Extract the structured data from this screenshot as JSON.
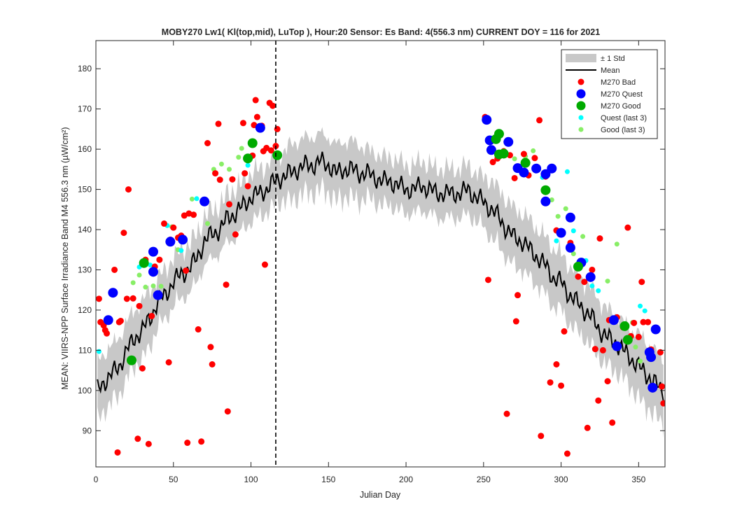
{
  "chart_data": {
    "type": "scatter",
    "title": "MOBY270   Lw1( Kl(top,mid), LuTop ),   Hour:20 Sensor: Es Band: 4(556.3 nm)   CURRENT DOY = 116 for 2021",
    "xlabel": "Julian Day",
    "ylabel": "MEAN: VIIRS-NPP Surface Irradiance Band M4 556.3 nm (µW/cm²)",
    "xlim": [
      0,
      367
    ],
    "ylim": [
      81,
      187
    ],
    "xticks": [
      0,
      50,
      100,
      150,
      200,
      250,
      300,
      350
    ],
    "yticks": [
      90,
      100,
      110,
      120,
      130,
      140,
      150,
      160,
      170,
      180
    ],
    "current_doy": 116,
    "legend_position": "top-right",
    "colors": {
      "std_band": "#c8c8c8",
      "mean": "#000000",
      "bad": "#ff0000",
      "quest": "#0000ff",
      "good": "#00aa00",
      "quest_last3": "#00ffff",
      "good_last3": "#88ee66"
    },
    "legend": [
      {
        "label": "± 1 Std",
        "key": "std"
      },
      {
        "label": "Mean",
        "key": "mean"
      },
      {
        "label": "M270 Bad",
        "key": "bad"
      },
      {
        "label": "M270 Quest",
        "key": "quest"
      },
      {
        "label": "M270 Good",
        "key": "good"
      },
      {
        "label": "Quest (last 3)",
        "key": "quest_last3"
      },
      {
        "label": "Good (last 3)",
        "key": "good_last3"
      }
    ],
    "mean_std": {
      "days": [
        1,
        5,
        10,
        15,
        20,
        25,
        30,
        35,
        40,
        45,
        50,
        55,
        60,
        65,
        70,
        75,
        80,
        85,
        90,
        95,
        100,
        105,
        110,
        115,
        120,
        125,
        130,
        135,
        140,
        145,
        150,
        155,
        160,
        165,
        170,
        175,
        180,
        185,
        190,
        195,
        200,
        205,
        210,
        215,
        220,
        225,
        230,
        235,
        240,
        245,
        250,
        255,
        260,
        265,
        270,
        275,
        280,
        285,
        290,
        295,
        300,
        305,
        310,
        315,
        320,
        325,
        330,
        335,
        340,
        345,
        350,
        355,
        360,
        365
      ],
      "mean": [
        100,
        102,
        104,
        106,
        110,
        113,
        115,
        118,
        122,
        124,
        127,
        129,
        130,
        133,
        137,
        139,
        140,
        143,
        144,
        146,
        148,
        149,
        150,
        152,
        153,
        154,
        155,
        156,
        156,
        157,
        156,
        154,
        155,
        155,
        154,
        154,
        153,
        152,
        152,
        151,
        150,
        150,
        151,
        150,
        149,
        149,
        149,
        149,
        150,
        148,
        147,
        145,
        143,
        140,
        138,
        137,
        135,
        133,
        131,
        128,
        127,
        124,
        122,
        120,
        118,
        115,
        113,
        112,
        110,
        108,
        106,
        104,
        102,
        100
      ],
      "std": [
        6,
        6,
        6,
        6,
        6,
        6,
        6,
        6,
        5,
        5,
        5,
        5,
        5,
        5,
        5,
        5,
        5,
        5,
        5,
        5,
        5,
        5,
        5,
        5,
        5,
        6,
        6,
        6,
        6,
        6,
        6,
        6,
        6,
        6,
        6,
        5,
        5,
        5,
        5,
        5,
        5,
        5,
        5,
        5,
        5,
        5,
        5,
        5,
        5,
        5,
        5,
        6,
        6,
        6,
        6,
        6,
        6,
        6,
        6,
        6,
        6,
        6,
        6,
        6,
        6,
        6,
        6,
        6,
        6,
        6,
        7,
        7,
        7,
        7
      ]
    },
    "bad": [
      {
        "x": 2,
        "y": 122.8
      },
      {
        "x": 3,
        "y": 117
      },
      {
        "x": 5,
        "y": 116.2
      },
      {
        "x": 6,
        "y": 115
      },
      {
        "x": 7,
        "y": 114.2
      },
      {
        "x": 12,
        "y": 130
      },
      {
        "x": 14,
        "y": 84.6
      },
      {
        "x": 15,
        "y": 117
      },
      {
        "x": 16,
        "y": 117.3
      },
      {
        "x": 18,
        "y": 139.2
      },
      {
        "x": 21,
        "y": 150
      },
      {
        "x": 20,
        "y": 122.8
      },
      {
        "x": 24,
        "y": 122.9
      },
      {
        "x": 27,
        "y": 88
      },
      {
        "x": 28,
        "y": 121
      },
      {
        "x": 30,
        "y": 105.5
      },
      {
        "x": 32,
        "y": 132.5
      },
      {
        "x": 34,
        "y": 86.7
      },
      {
        "x": 36,
        "y": 118.5
      },
      {
        "x": 38,
        "y": 130.8
      },
      {
        "x": 41,
        "y": 132.5
      },
      {
        "x": 44,
        "y": 141.5
      },
      {
        "x": 47,
        "y": 107
      },
      {
        "x": 48,
        "y": 137.5
      },
      {
        "x": 50,
        "y": 140.5
      },
      {
        "x": 53,
        "y": 138
      },
      {
        "x": 55,
        "y": 138.5
      },
      {
        "x": 57,
        "y": 143.5
      },
      {
        "x": 58,
        "y": 129.8
      },
      {
        "x": 59,
        "y": 87
      },
      {
        "x": 60,
        "y": 144
      },
      {
        "x": 63,
        "y": 143.7
      },
      {
        "x": 66,
        "y": 115.2
      },
      {
        "x": 68,
        "y": 87.3
      },
      {
        "x": 72,
        "y": 161.5
      },
      {
        "x": 74,
        "y": 110.8
      },
      {
        "x": 75,
        "y": 106.5
      },
      {
        "x": 77,
        "y": 154
      },
      {
        "x": 79,
        "y": 166.3
      },
      {
        "x": 80,
        "y": 152.4
      },
      {
        "x": 84,
        "y": 126.3
      },
      {
        "x": 85,
        "y": 94.8
      },
      {
        "x": 86,
        "y": 146.3
      },
      {
        "x": 88,
        "y": 152.5
      },
      {
        "x": 90,
        "y": 138.8
      },
      {
        "x": 95,
        "y": 166.5
      },
      {
        "x": 96,
        "y": 154
      },
      {
        "x": 98,
        "y": 150.8
      },
      {
        "x": 101,
        "y": 158.4
      },
      {
        "x": 102,
        "y": 166
      },
      {
        "x": 103,
        "y": 172.2
      },
      {
        "x": 104,
        "y": 168
      },
      {
        "x": 107,
        "y": 165.8
      },
      {
        "x": 108,
        "y": 159.5
      },
      {
        "x": 109,
        "y": 131.3
      },
      {
        "x": 110,
        "y": 160.3
      },
      {
        "x": 112,
        "y": 171.5
      },
      {
        "x": 113,
        "y": 159.7
      },
      {
        "x": 114,
        "y": 170.8
      },
      {
        "x": 116,
        "y": 160.8
      },
      {
        "x": 117,
        "y": 165
      },
      {
        "x": 251,
        "y": 168
      },
      {
        "x": 253,
        "y": 127.5
      },
      {
        "x": 256,
        "y": 156.8
      },
      {
        "x": 259,
        "y": 157.7
      },
      {
        "x": 263,
        "y": 159.5
      },
      {
        "x": 265,
        "y": 94.2
      },
      {
        "x": 267,
        "y": 158.5
      },
      {
        "x": 270,
        "y": 152.8
      },
      {
        "x": 271,
        "y": 117.2
      },
      {
        "x": 272,
        "y": 123.7
      },
      {
        "x": 276,
        "y": 158.8
      },
      {
        "x": 279,
        "y": 153.5
      },
      {
        "x": 283,
        "y": 157.8
      },
      {
        "x": 286,
        "y": 167.2
      },
      {
        "x": 287,
        "y": 88.7
      },
      {
        "x": 290,
        "y": 153.2
      },
      {
        "x": 293,
        "y": 102
      },
      {
        "x": 297,
        "y": 106.5
      },
      {
        "x": 297,
        "y": 139.8
      },
      {
        "x": 300,
        "y": 101.2
      },
      {
        "x": 302,
        "y": 114.7
      },
      {
        "x": 304,
        "y": 84.3
      },
      {
        "x": 306,
        "y": 136.7
      },
      {
        "x": 311,
        "y": 128.3
      },
      {
        "x": 315,
        "y": 127
      },
      {
        "x": 317,
        "y": 90.7
      },
      {
        "x": 320,
        "y": 130
      },
      {
        "x": 322,
        "y": 110.3
      },
      {
        "x": 324,
        "y": 97.5
      },
      {
        "x": 325,
        "y": 137.8
      },
      {
        "x": 327,
        "y": 110
      },
      {
        "x": 330,
        "y": 102.3
      },
      {
        "x": 331,
        "y": 117.5
      },
      {
        "x": 333,
        "y": 92
      },
      {
        "x": 336,
        "y": 118.2
      },
      {
        "x": 340,
        "y": 115.7
      },
      {
        "x": 343,
        "y": 140.5
      },
      {
        "x": 345,
        "y": 113.5
      },
      {
        "x": 347,
        "y": 116.8
      },
      {
        "x": 350,
        "y": 113.3
      },
      {
        "x": 352,
        "y": 127
      },
      {
        "x": 353,
        "y": 117
      },
      {
        "x": 356,
        "y": 117
      },
      {
        "x": 358,
        "y": 110.2
      },
      {
        "x": 362,
        "y": 115.3
      },
      {
        "x": 364,
        "y": 109.5
      },
      {
        "x": 366,
        "y": 96.8
      },
      {
        "x": 365,
        "y": 101
      }
    ],
    "quest": [
      {
        "x": 8,
        "y": 117.5
      },
      {
        "x": 11,
        "y": 124.3
      },
      {
        "x": 37,
        "y": 129.5
      },
      {
        "x": 37,
        "y": 134.5
      },
      {
        "x": 40,
        "y": 123.7
      },
      {
        "x": 48,
        "y": 137
      },
      {
        "x": 56,
        "y": 137.5
      },
      {
        "x": 70,
        "y": 147
      },
      {
        "x": 106,
        "y": 165.3
      },
      {
        "x": 252,
        "y": 167.3
      },
      {
        "x": 254,
        "y": 162.2
      },
      {
        "x": 255,
        "y": 159.8
      },
      {
        "x": 266,
        "y": 161.8
      },
      {
        "x": 272,
        "y": 155.3
      },
      {
        "x": 276,
        "y": 154.2
      },
      {
        "x": 284,
        "y": 155.2
      },
      {
        "x": 290,
        "y": 147
      },
      {
        "x": 290,
        "y": 153.8
      },
      {
        "x": 294,
        "y": 155.2
      },
      {
        "x": 300,
        "y": 139.2
      },
      {
        "x": 306,
        "y": 143
      },
      {
        "x": 306,
        "y": 135.5
      },
      {
        "x": 313,
        "y": 131.8
      },
      {
        "x": 319,
        "y": 128.2
      },
      {
        "x": 334,
        "y": 117.5
      },
      {
        "x": 336,
        "y": 111
      },
      {
        "x": 357,
        "y": 109.5
      },
      {
        "x": 358,
        "y": 108.3
      },
      {
        "x": 359,
        "y": 100.7
      },
      {
        "x": 361,
        "y": 115.2
      }
    ],
    "good": [
      {
        "x": 23,
        "y": 107.5
      },
      {
        "x": 31,
        "y": 131.7
      },
      {
        "x": 98,
        "y": 157.7
      },
      {
        "x": 101,
        "y": 161.5
      },
      {
        "x": 117,
        "y": 158.5
      },
      {
        "x": 258,
        "y": 162.5
      },
      {
        "x": 260,
        "y": 163.8
      },
      {
        "x": 260,
        "y": 158.7
      },
      {
        "x": 263,
        "y": 158.9
      },
      {
        "x": 277,
        "y": 156.6
      },
      {
        "x": 290,
        "y": 149.8
      },
      {
        "x": 311,
        "y": 130.8
      },
      {
        "x": 341,
        "y": 116
      },
      {
        "x": 343,
        "y": 112.6
      }
    ],
    "quest_last3": [
      {
        "x": 2,
        "y": 109.7
      },
      {
        "x": 28,
        "y": 130.7
      },
      {
        "x": 46,
        "y": 141
      },
      {
        "x": 35,
        "y": 131.2
      },
      {
        "x": 55,
        "y": 134.8
      },
      {
        "x": 65,
        "y": 147.7
      },
      {
        "x": 98,
        "y": 156
      },
      {
        "x": 288,
        "y": 153
      },
      {
        "x": 304,
        "y": 154.4
      },
      {
        "x": 297,
        "y": 137.2
      },
      {
        "x": 308,
        "y": 139.7
      },
      {
        "x": 316,
        "y": 132.3
      },
      {
        "x": 320,
        "y": 126
      },
      {
        "x": 324,
        "y": 124.8
      },
      {
        "x": 342,
        "y": 113
      },
      {
        "x": 351,
        "y": 121
      },
      {
        "x": 354,
        "y": 119.8
      }
    ],
    "good_last3": [
      {
        "x": 24,
        "y": 126.8
      },
      {
        "x": 28,
        "y": 128.7
      },
      {
        "x": 32,
        "y": 125.7
      },
      {
        "x": 37,
        "y": 126
      },
      {
        "x": 42,
        "y": 125.9
      },
      {
        "x": 49,
        "y": 140.7
      },
      {
        "x": 53,
        "y": 135
      },
      {
        "x": 62,
        "y": 147.6
      },
      {
        "x": 72,
        "y": 141.5
      },
      {
        "x": 76,
        "y": 155
      },
      {
        "x": 81,
        "y": 156.3
      },
      {
        "x": 86,
        "y": 155
      },
      {
        "x": 92,
        "y": 158
      },
      {
        "x": 94,
        "y": 160.2
      },
      {
        "x": 270,
        "y": 157.6
      },
      {
        "x": 277,
        "y": 158.2
      },
      {
        "x": 282,
        "y": 159.6
      },
      {
        "x": 294,
        "y": 147.4
      },
      {
        "x": 298,
        "y": 143.3
      },
      {
        "x": 303,
        "y": 145.2
      },
      {
        "x": 308,
        "y": 134
      },
      {
        "x": 314,
        "y": 138.3
      },
      {
        "x": 330,
        "y": 127.2
      },
      {
        "x": 336,
        "y": 136.4
      },
      {
        "x": 346,
        "y": 116.9
      },
      {
        "x": 348,
        "y": 110.8
      },
      {
        "x": 351,
        "y": 107.3
      }
    ]
  }
}
